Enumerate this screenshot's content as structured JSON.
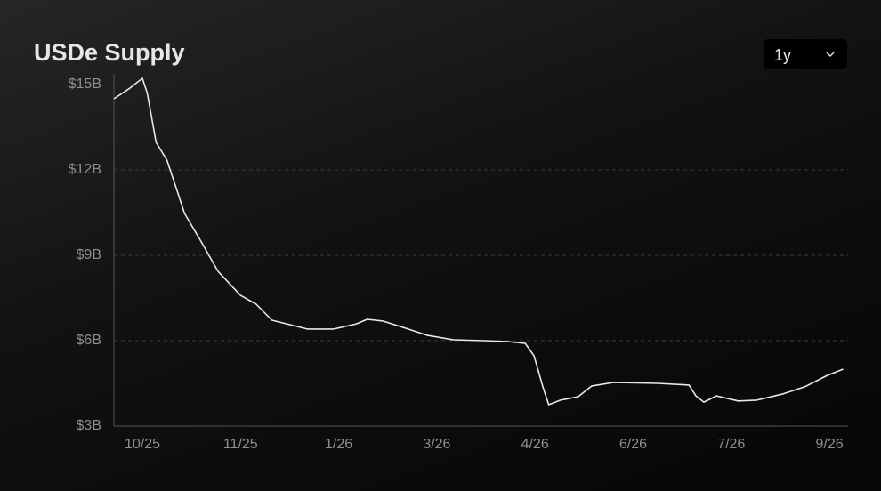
{
  "chart_data": {
    "type": "line",
    "title": "USDe Supply",
    "x": [
      -0.29,
      -0.14,
      0,
      0.05,
      0.14,
      0.25,
      0.34,
      0.43,
      0.59,
      0.77,
      1.0,
      1.16,
      1.32,
      1.68,
      1.95,
      2.18,
      2.29,
      2.45,
      2.68,
      2.9,
      3.17,
      3.49,
      3.72,
      3.9,
      3.99,
      4.08,
      4.14,
      4.26,
      4.44,
      4.58,
      4.8,
      5.25,
      5.57,
      5.64,
      5.72,
      5.85,
      6.07,
      6.26,
      6.53,
      6.75,
      6.98,
      7.14
    ],
    "series": [
      {
        "name": "USDe Supply",
        "color": "#e8e8e8",
        "values": [
          14.5,
          14.84,
          15.22,
          14.69,
          12.97,
          12.34,
          11.41,
          10.47,
          9.53,
          8.44,
          7.59,
          7.28,
          6.72,
          6.41,
          6.41,
          6.59,
          6.75,
          6.69,
          6.44,
          6.19,
          6.03,
          6.0,
          5.97,
          5.91,
          5.47,
          4.38,
          3.75,
          3.91,
          4.03,
          4.41,
          4.53,
          4.5,
          4.44,
          4.06,
          3.84,
          4.06,
          3.88,
          3.91,
          4.13,
          4.38,
          4.78,
          5.0
        ]
      }
    ],
    "xlim": [
      -0.29,
      7.19
    ],
    "xticks": [
      {
        "value": 0,
        "label": "10/25"
      },
      {
        "value": 1,
        "label": "11/25"
      },
      {
        "value": 2,
        "label": "1/26"
      },
      {
        "value": 3,
        "label": "3/26"
      },
      {
        "value": 4,
        "label": "4/26"
      },
      {
        "value": 5,
        "label": "6/26"
      },
      {
        "value": 6,
        "label": "7/26"
      },
      {
        "value": 7,
        "label": "9/26"
      }
    ],
    "ylim": [
      3,
      15
    ],
    "yticks": [
      {
        "value": 3,
        "label": "$3B"
      },
      {
        "value": 6,
        "label": "$6B"
      },
      {
        "value": 9,
        "label": "$9B"
      },
      {
        "value": 12,
        "label": "$12B"
      },
      {
        "value": 15,
        "label": "$15B"
      }
    ],
    "grid": true
  },
  "controls": {
    "range": "1y"
  }
}
